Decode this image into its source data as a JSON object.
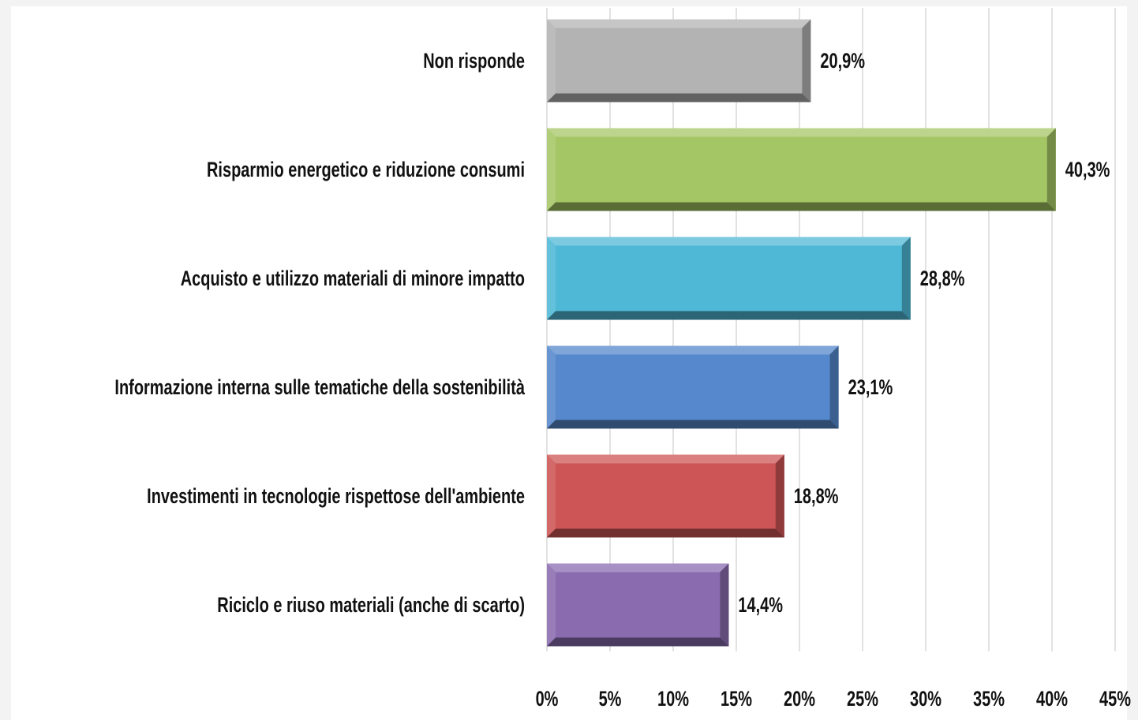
{
  "chart_data": {
    "type": "bar",
    "orientation": "horizontal",
    "categories": [
      "Non risponde",
      "Risparmio energetico e riduzione consumi",
      "Acquisto e utilizzo materiali di minore impatto",
      "Informazione interna sulle tematiche della sostenibilità",
      "Investimenti in tecnologie rispettose dell'ambiente",
      "Riciclo e riuso materiali (anche di scarto)"
    ],
    "values": [
      20.9,
      40.3,
      28.8,
      23.1,
      18.8,
      14.4
    ],
    "value_labels": [
      "20,9%",
      "40,3%",
      "28,8%",
      "23,1%",
      "18,8%",
      "14,4%"
    ],
    "colors": [
      "#b3b3b3",
      "#a5c664",
      "#4fb8d6",
      "#5588cc",
      "#cd5555",
      "#8a6bb0"
    ],
    "xlim": [
      0,
      45
    ],
    "xticks": [
      {
        "value": 0,
        "label": "0%"
      },
      {
        "value": 5,
        "label": "5%"
      },
      {
        "value": 10,
        "label": "10%"
      },
      {
        "value": 15,
        "label": "15%"
      },
      {
        "value": 20,
        "label": "20%"
      },
      {
        "value": 25,
        "label": "25%"
      },
      {
        "value": 30,
        "label": "30%"
      },
      {
        "value": 35,
        "label": "35%"
      },
      {
        "value": 40,
        "label": "40%"
      },
      {
        "value": 45,
        "label": "45%"
      }
    ],
    "grid": true
  }
}
